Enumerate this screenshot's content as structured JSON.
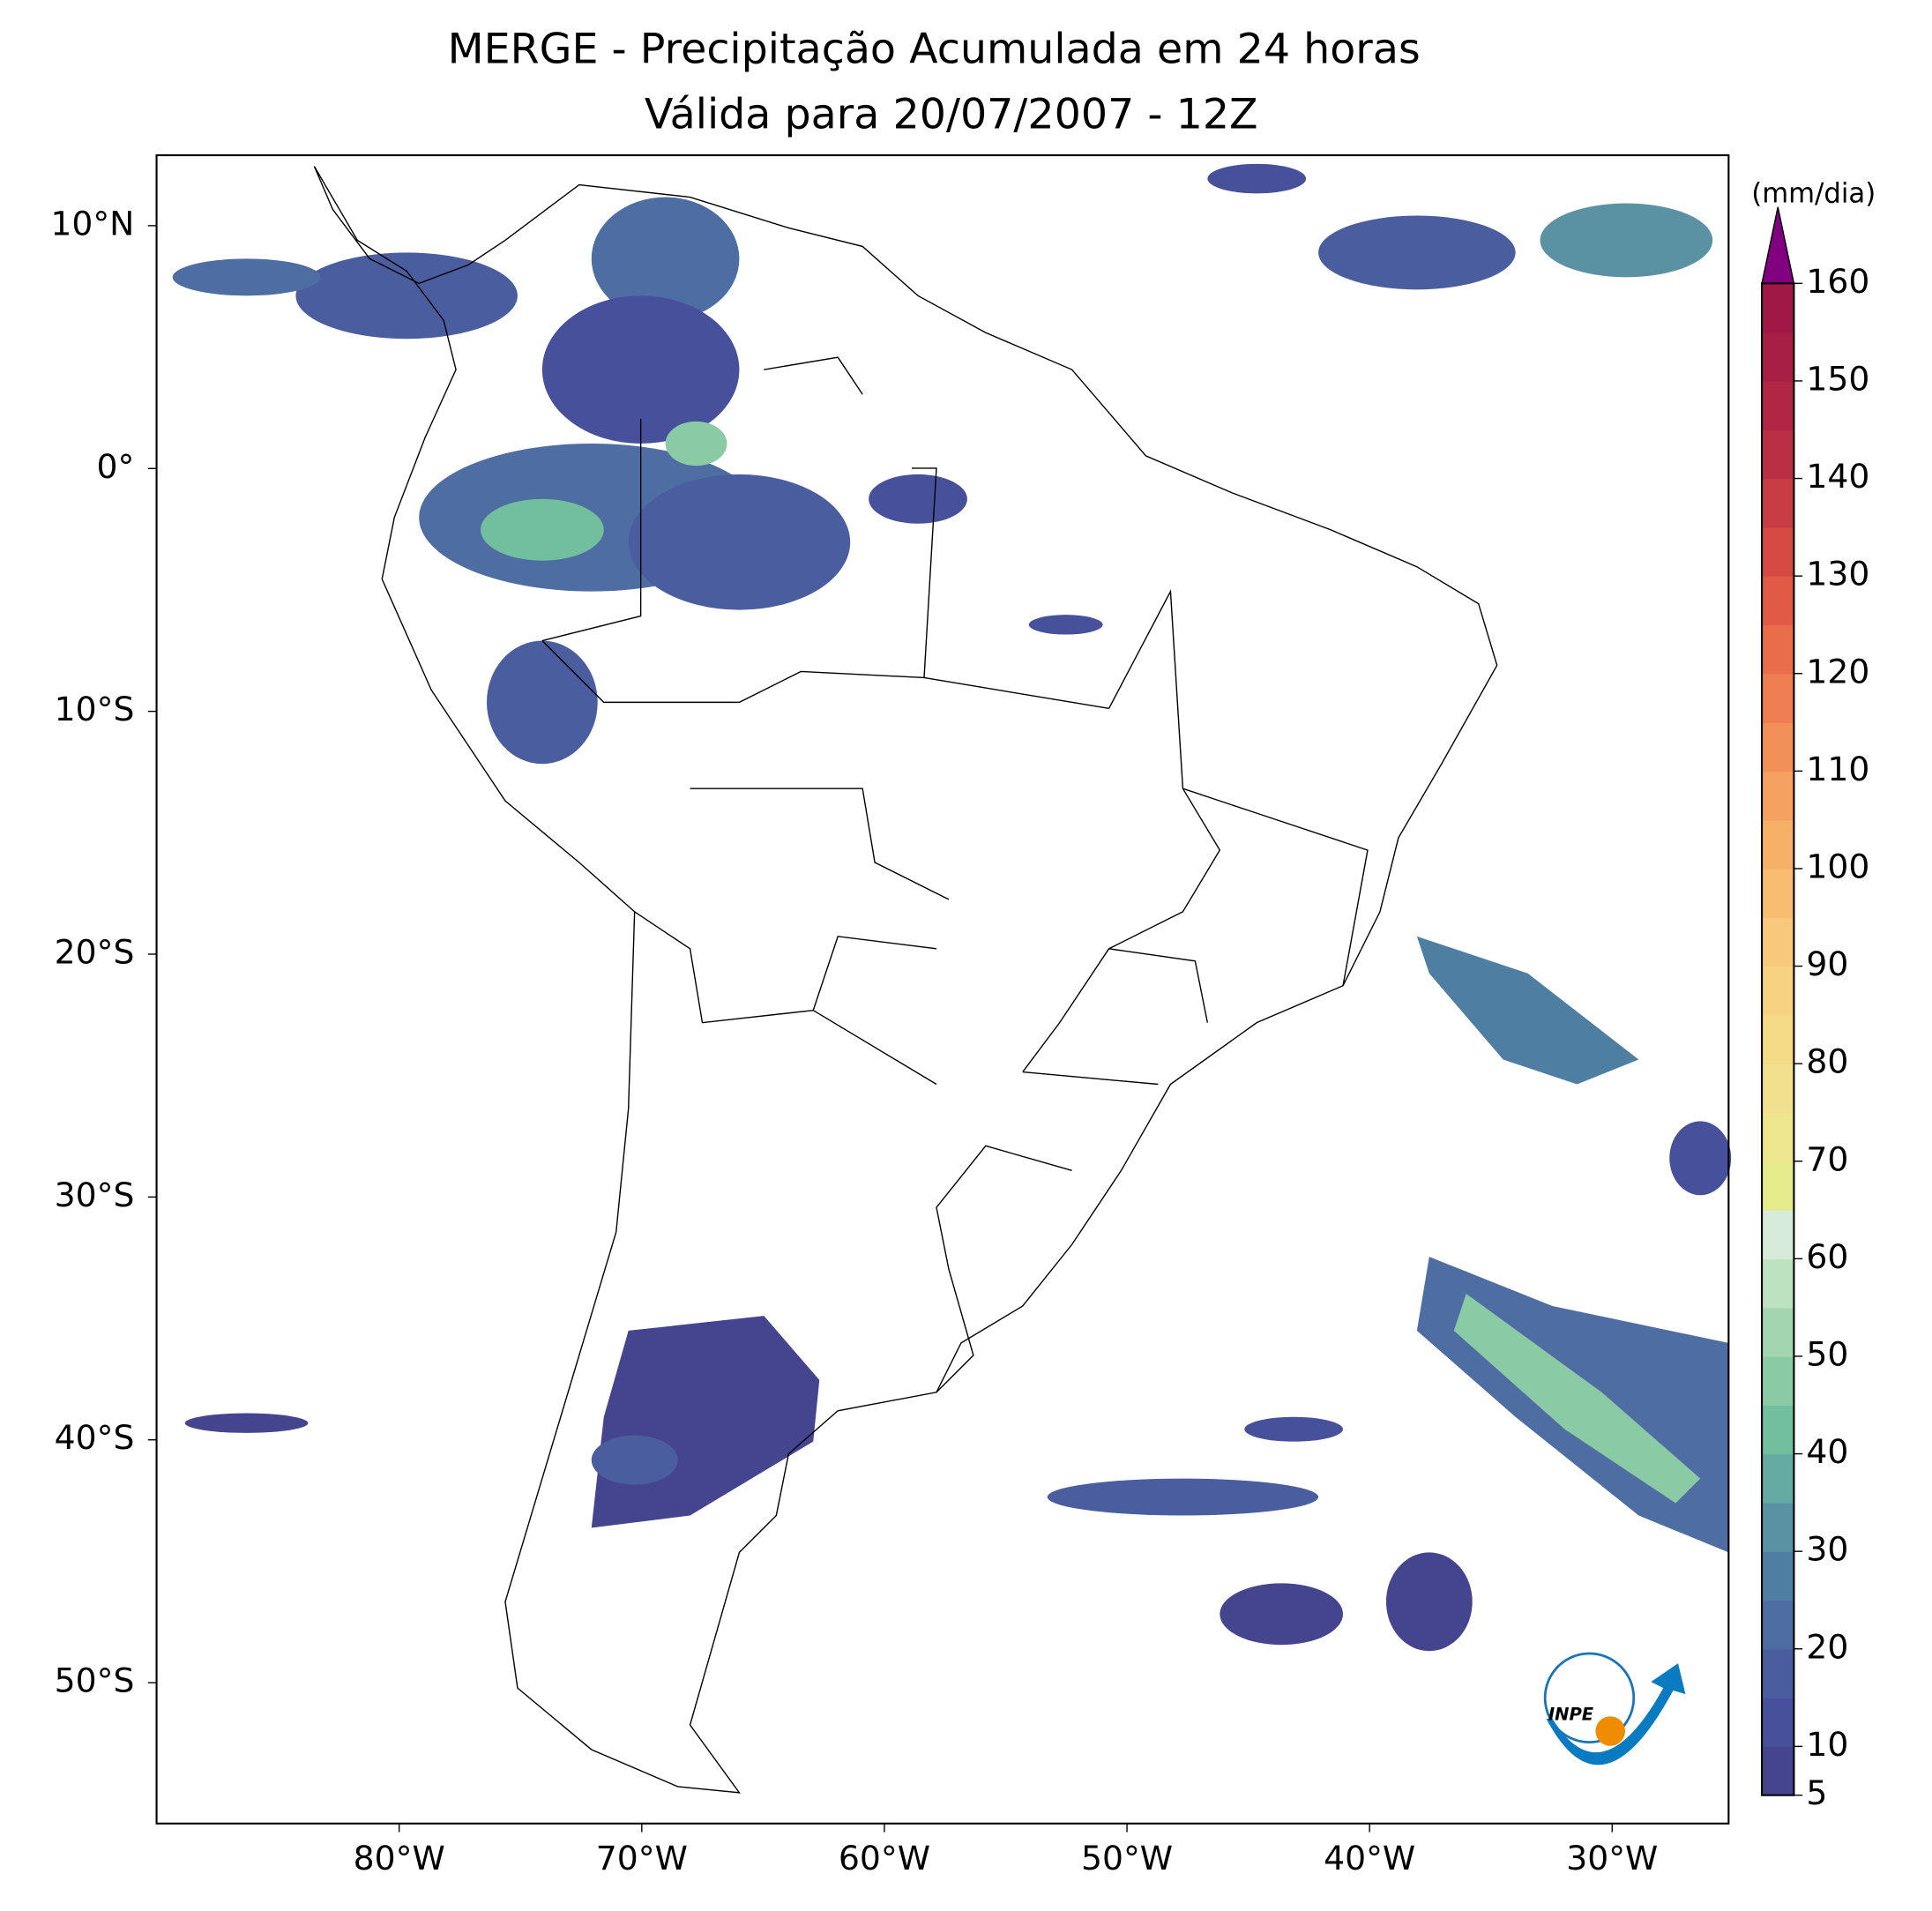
{
  "map": {
    "title": "MERGE - Precipitação Acumulada em 24 horas",
    "subtitle": "Válida para 20/07/2007 - 12Z",
    "lon_range": [
      -90,
      -25.2
    ],
    "lat_range": [
      -55.8,
      12.9
    ],
    "lon_ticks": [
      {
        "value": -80,
        "label": "80°W"
      },
      {
        "value": -70,
        "label": "70°W"
      },
      {
        "value": -60,
        "label": "60°W"
      },
      {
        "value": -50,
        "label": "50°W"
      },
      {
        "value": -40,
        "label": "40°W"
      },
      {
        "value": -30,
        "label": "30°W"
      }
    ],
    "lat_ticks": [
      {
        "value": 10,
        "label": "10°N"
      },
      {
        "value": 0,
        "label": "0°"
      },
      {
        "value": -10,
        "label": "10°S"
      },
      {
        "value": -20,
        "label": "20°S"
      },
      {
        "value": -30,
        "label": "30°S"
      },
      {
        "value": -40,
        "label": "40°S"
      },
      {
        "value": -50,
        "label": "50°S"
      }
    ],
    "logo": "INPE"
  },
  "colorbar": {
    "label": "(mm/dia)",
    "range": [
      5,
      160
    ],
    "ticks": [
      5,
      10,
      20,
      30,
      40,
      50,
      60,
      70,
      80,
      90,
      100,
      110,
      120,
      130,
      140,
      150,
      160
    ],
    "colors": [
      "#45458f",
      "#47509a",
      "#4a5e9f",
      "#4e6ea3",
      "#4f7ea3",
      "#5a92a4",
      "#65aaa3",
      "#72bf9f",
      "#8acba5",
      "#a3d6b0",
      "#bde2c0",
      "#d6ebd9",
      "#e5eb8a",
      "#eee58f",
      "#f2e08e",
      "#f5da88",
      "#f7d282",
      "#f8c97d",
      "#f8bd70",
      "#f7b068",
      "#f5a162",
      "#f3905a",
      "#ef7f52",
      "#e96c4b",
      "#e15a45",
      "#d54b43",
      "#c83d43",
      "#bb2f44",
      "#b12645",
      "#a81f46",
      "#a01845"
    ],
    "extend_color": "#800080"
  }
}
